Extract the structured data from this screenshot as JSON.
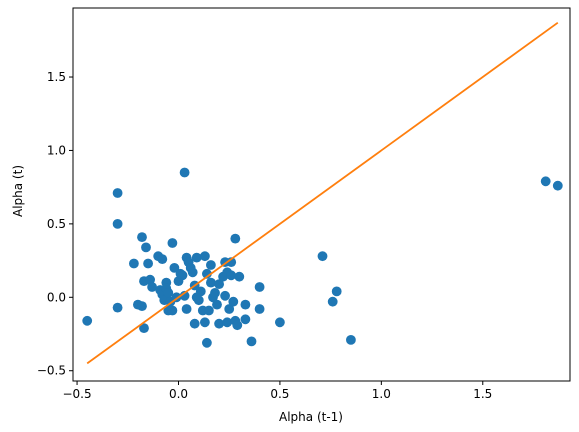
{
  "chart_data": {
    "type": "scatter",
    "title": "",
    "xlabel": "Alpha (t-1)",
    "ylabel": "Alpha (t)",
    "xlim": [
      -0.52,
      1.93
    ],
    "ylim": [
      -0.57,
      1.97
    ],
    "grid": false,
    "xticks": [
      -0.5,
      0.0,
      0.5,
      1.0,
      1.5
    ],
    "xtick_labels": [
      "−0.5",
      "0.0",
      "0.5",
      "1.0",
      "1.5"
    ],
    "yticks": [
      -0.5,
      0.0,
      0.5,
      1.0,
      1.5
    ],
    "ytick_labels": [
      "−0.5",
      "0.0",
      "0.5",
      "1.0",
      "1.5"
    ],
    "colors": {
      "points": "#1f77b4",
      "line": "#ff7f0e",
      "axes": "#000000"
    },
    "series": [
      {
        "kind": "scatter",
        "points": [
          [
            -0.45,
            -0.16
          ],
          [
            -0.3,
            0.71
          ],
          [
            -0.3,
            0.5
          ],
          [
            -0.3,
            -0.07
          ],
          [
            -0.22,
            0.23
          ],
          [
            -0.2,
            -0.05
          ],
          [
            -0.18,
            0.41
          ],
          [
            -0.18,
            -0.06
          ],
          [
            -0.17,
            0.11
          ],
          [
            -0.17,
            -0.21
          ],
          [
            -0.16,
            0.34
          ],
          [
            -0.15,
            0.23
          ],
          [
            -0.14,
            0.12
          ],
          [
            -0.13,
            0.07
          ],
          [
            -0.1,
            0.28
          ],
          [
            -0.09,
            0.05
          ],
          [
            -0.08,
            0.26
          ],
          [
            -0.08,
            0.02
          ],
          [
            -0.07,
            -0.02
          ],
          [
            -0.06,
            0.1
          ],
          [
            -0.06,
            0.06
          ],
          [
            -0.05,
            0.03
          ],
          [
            -0.05,
            -0.09
          ],
          [
            -0.04,
            -0.03
          ],
          [
            -0.03,
            0.37
          ],
          [
            -0.03,
            -0.09
          ],
          [
            -0.02,
            0.2
          ],
          [
            -0.01,
            0.0
          ],
          [
            0.0,
            0.11
          ],
          [
            0.01,
            0.16
          ],
          [
            0.02,
            0.15
          ],
          [
            0.03,
            0.85
          ],
          [
            0.03,
            0.01
          ],
          [
            0.04,
            0.27
          ],
          [
            0.04,
            -0.08
          ],
          [
            0.05,
            0.24
          ],
          [
            0.06,
            0.2
          ],
          [
            0.07,
            0.17
          ],
          [
            0.08,
            0.08
          ],
          [
            0.08,
            -0.18
          ],
          [
            0.09,
            0.27
          ],
          [
            0.09,
            0.0
          ],
          [
            0.1,
            -0.02
          ],
          [
            0.11,
            0.04
          ],
          [
            0.12,
            -0.09
          ],
          [
            0.13,
            0.28
          ],
          [
            0.13,
            -0.17
          ],
          [
            0.14,
            0.16
          ],
          [
            0.14,
            -0.31
          ],
          [
            0.15,
            -0.09
          ],
          [
            0.16,
            0.22
          ],
          [
            0.16,
            0.1
          ],
          [
            0.17,
            0.0
          ],
          [
            0.18,
            0.03
          ],
          [
            0.19,
            -0.05
          ],
          [
            0.2,
            0.09
          ],
          [
            0.2,
            -0.18
          ],
          [
            0.22,
            0.14
          ],
          [
            0.23,
            0.24
          ],
          [
            0.23,
            0.01
          ],
          [
            0.24,
            0.17
          ],
          [
            0.24,
            -0.17
          ],
          [
            0.25,
            -0.08
          ],
          [
            0.26,
            0.15
          ],
          [
            0.26,
            0.24
          ],
          [
            0.27,
            -0.03
          ],
          [
            0.28,
            0.4
          ],
          [
            0.28,
            -0.16
          ],
          [
            0.29,
            -0.19
          ],
          [
            0.3,
            0.14
          ],
          [
            0.33,
            -0.05
          ],
          [
            0.33,
            -0.15
          ],
          [
            0.36,
            -0.3
          ],
          [
            0.4,
            0.07
          ],
          [
            0.4,
            -0.08
          ],
          [
            0.5,
            -0.17
          ],
          [
            0.71,
            0.28
          ],
          [
            0.76,
            -0.03
          ],
          [
            0.78,
            0.04
          ],
          [
            0.85,
            -0.29
          ],
          [
            1.81,
            0.79
          ],
          [
            1.87,
            0.76
          ]
        ]
      },
      {
        "kind": "line",
        "x": [
          -0.45,
          1.87
        ],
        "y": [
          -0.45,
          1.87
        ]
      }
    ]
  }
}
